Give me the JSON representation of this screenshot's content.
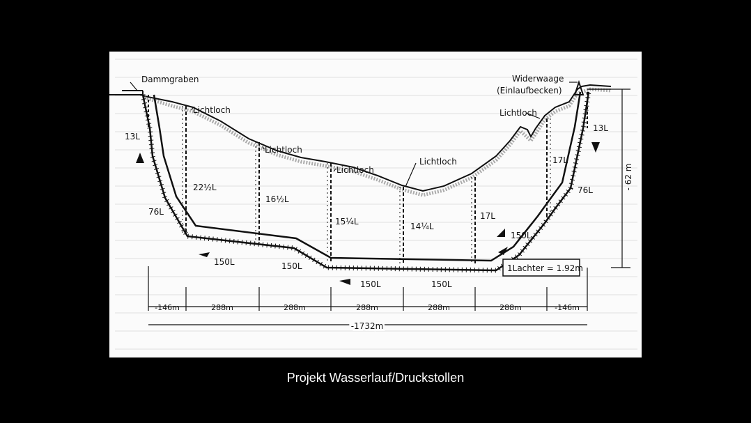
{
  "slide": {
    "caption": "Projekt Wasserlauf/Druckstollen"
  },
  "diagram": {
    "labels": {
      "dammgraben": "Dammgraben",
      "widerwaage_line1": "Widerwaage",
      "widerwaage_line2": "(Einlaufbecken)",
      "lichtloch_1": "Lichtloch",
      "lichtloch_2": "Lichtloch",
      "lichtloch_3": "Lichtloch",
      "lichtloch_4": "Lichtloch",
      "lichtloch_5": "Lichtloch"
    },
    "shaft_depths": {
      "left_end": "13L",
      "shaft_1": "22½L",
      "shaft_2": "16½L",
      "shaft_3": "15¼L",
      "shaft_4": "14¼L",
      "shaft_5": "17L",
      "shaft_6": "17L",
      "right_end": "13L"
    },
    "slopes": {
      "left": "76L",
      "right": "76L"
    },
    "gallery_lengths": {
      "seg_1": "150L",
      "seg_2": "150L",
      "seg_3": "150L",
      "seg_4": "150L",
      "seg_5": "150L"
    },
    "legend": "1Lachter = 1.92m",
    "vertical_dimension": "- 62 m",
    "horizontal_dimensions": [
      "-146m",
      "288m",
      "288m",
      "288m",
      "288m",
      "288m",
      "-146m"
    ],
    "total_length": "-1732m"
  }
}
